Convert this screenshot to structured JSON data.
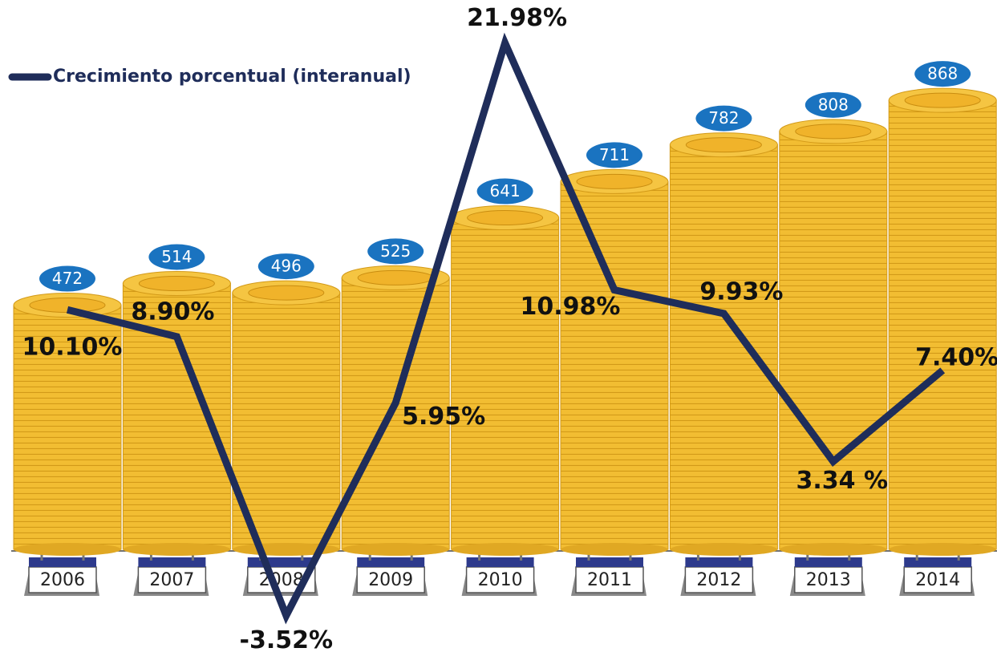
{
  "chart_data": {
    "type": "bar-line",
    "categories": [
      "2006",
      "2007",
      "2008",
      "2009",
      "2010",
      "2011",
      "2012",
      "2013",
      "2014"
    ],
    "series": [
      {
        "type": "bar",
        "color": "#f0b82a",
        "values": [
          472,
          514,
          496,
          525,
          641,
          711,
          782,
          808,
          868
        ]
      },
      {
        "type": "line",
        "name": "Crecimiento porcentual (interanual)",
        "color": "#1f2d5a",
        "axis": "y2",
        "values": [
          10.1,
          8.9,
          -3.52,
          5.95,
          21.98,
          10.98,
          9.93,
          3.34,
          7.4
        ],
        "value_labels": [
          "10.10%",
          "8.90%",
          "-3.52%",
          "5.95%",
          "21.98%",
          "10.98%",
          "9.93%",
          "3.34 %",
          "7.40%"
        ]
      }
    ],
    "ylim": [
      0,
      1000
    ],
    "y2lim": [
      -4,
      23
    ],
    "legend": "top-left"
  }
}
